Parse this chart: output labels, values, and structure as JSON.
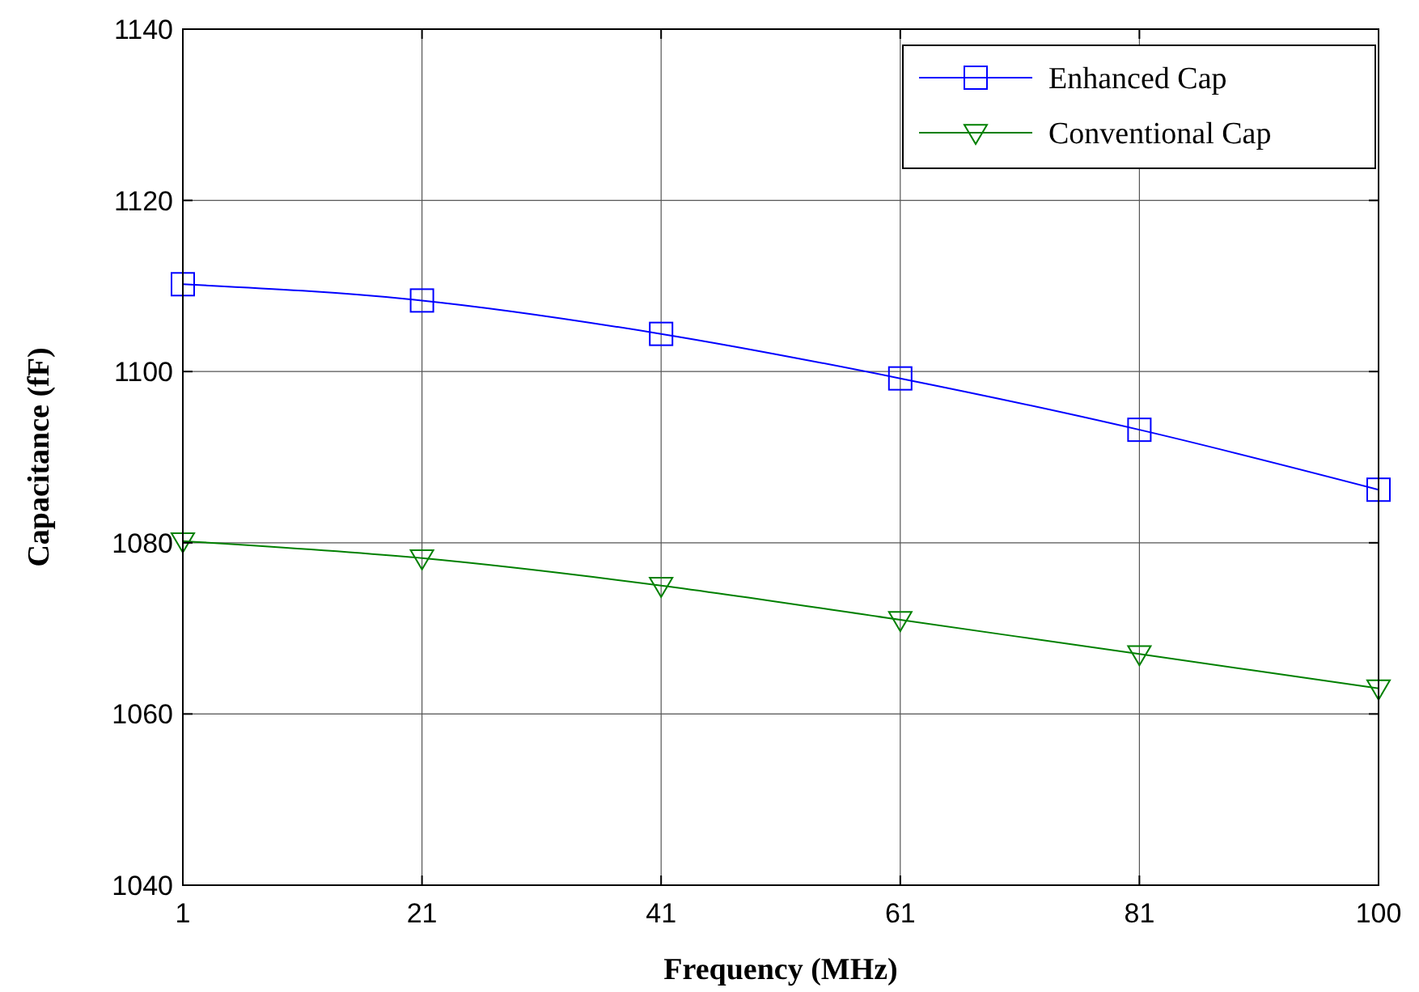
{
  "chart_data": {
    "type": "line",
    "xlabel": "Frequency (MHz)",
    "ylabel": "Capacitance (fF)",
    "categories": [
      "1",
      "21",
      "41",
      "61",
      "81",
      "100"
    ],
    "ylim": [
      1040,
      1140
    ],
    "yticks": [
      1040,
      1060,
      1080,
      1100,
      1120,
      1140
    ],
    "grid": true,
    "legend": "top right",
    "series": [
      {
        "name": "Enhanced Cap",
        "color": "#0000ff",
        "marker": "square",
        "values": [
          1110.2,
          1108.3,
          1104.4,
          1099.2,
          1093.2,
          1086.2
        ]
      },
      {
        "name": "Conventional Cap",
        "color": "#008000",
        "marker": "triangle",
        "values": [
          1080.2,
          1078.2,
          1075,
          1071,
          1067,
          1063
        ]
      }
    ]
  }
}
